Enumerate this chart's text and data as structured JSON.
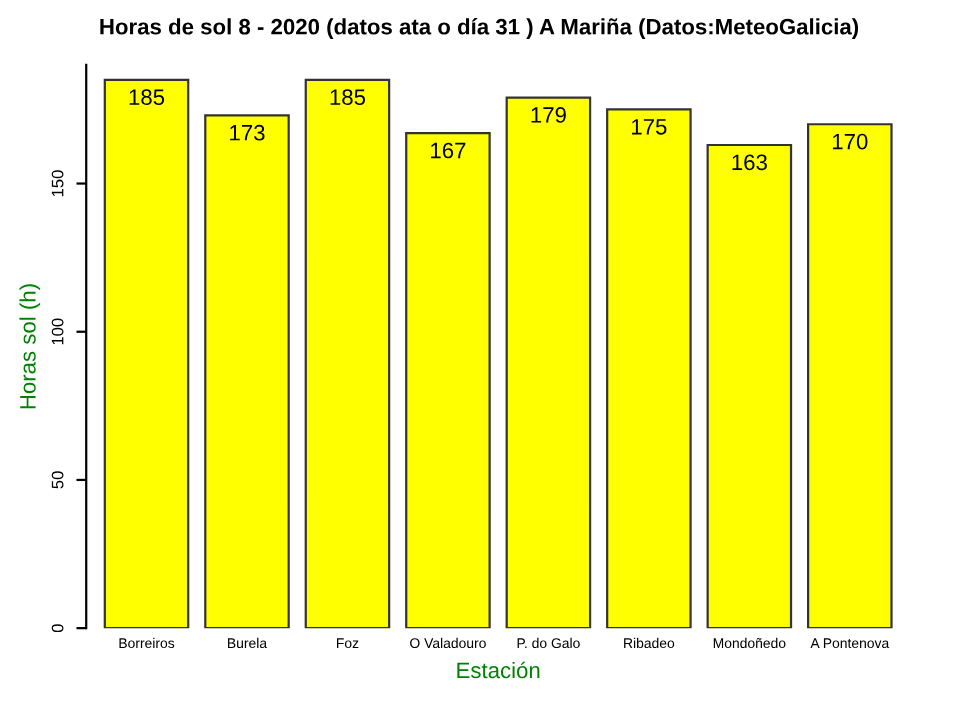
{
  "chart_data": {
    "type": "bar",
    "title": "Horas de sol 8 - 2020 (datos ata o día 31 ) A Mariña (Datos:MeteoGalicia)",
    "xlabel": "Estación",
    "ylabel": "Horas sol (h)",
    "categories": [
      "Borreiros",
      "Burela",
      "Foz",
      "O Valadouro",
      "P. do Galo",
      "Ribadeo",
      "Mondoñedo",
      "A Pontenova"
    ],
    "values": [
      185,
      173,
      185,
      167,
      179,
      175,
      163,
      170
    ],
    "color": "#ffff00",
    "ylim": [
      0,
      190
    ],
    "yticks": [
      0,
      50,
      100,
      150
    ],
    "data_labels": true,
    "grid": false,
    "legend": false
  }
}
